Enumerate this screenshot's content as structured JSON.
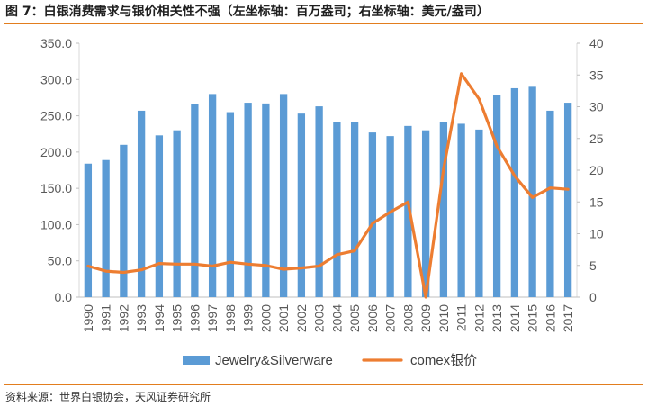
{
  "title": "图 7：白银消费需求与银价相关性不强（左坐标轴：百万盎司；右坐标轴：美元/盎司）",
  "source": "资料来源：世界白银协会，天风证券研究所",
  "colors": {
    "bar": "#5b9bd5",
    "line": "#ed7d31",
    "accent": "#e27d1e",
    "grid": "#d9d9d9"
  },
  "chart_data": {
    "type": "bar+line",
    "title": "白银消费需求与银价相关性不强",
    "categories": [
      "1990",
      "1991",
      "1992",
      "1993",
      "1994",
      "1995",
      "1996",
      "1997",
      "1998",
      "1999",
      "2000",
      "2001",
      "2002",
      "2003",
      "2004",
      "2005",
      "2006",
      "2007",
      "2008",
      "2009",
      "2010",
      "2011",
      "2012",
      "2013",
      "2014",
      "2015",
      "2016",
      "2017"
    ],
    "series": [
      {
        "name": "Jewelry&Silverware",
        "type": "bar",
        "axis": "left",
        "values": [
          184,
          189,
          210,
          257,
          223,
          230,
          266,
          280,
          255,
          268,
          267,
          280,
          253,
          263,
          242,
          241,
          227,
          222,
          236,
          230,
          242,
          239,
          231,
          279,
          288,
          290,
          257,
          268
        ]
      },
      {
        "name": "comex银价",
        "type": "line",
        "axis": "right",
        "values": [
          4.9,
          4.1,
          3.9,
          4.3,
          5.3,
          5.2,
          5.2,
          4.9,
          5.5,
          5.2,
          5.0,
          4.4,
          4.6,
          4.9,
          6.7,
          7.3,
          11.6,
          13.4,
          15.0,
          0.0,
          20.2,
          35.2,
          31.2,
          23.8,
          19.1,
          15.7,
          17.2,
          17.0
        ]
      }
    ],
    "yLeft": {
      "min": 0,
      "max": 350,
      "step": 50,
      "ticks": [
        "0.0",
        "50.0",
        "100.0",
        "150.0",
        "200.0",
        "250.0",
        "300.0",
        "350.0"
      ]
    },
    "yRight": {
      "min": 0,
      "max": 40,
      "step": 5,
      "ticks": [
        "0",
        "5",
        "10",
        "15",
        "20",
        "25",
        "30",
        "35",
        "40"
      ]
    },
    "legend": {
      "position": "bottom",
      "items": [
        "Jewelry&Silverware",
        "comex银价"
      ]
    }
  }
}
